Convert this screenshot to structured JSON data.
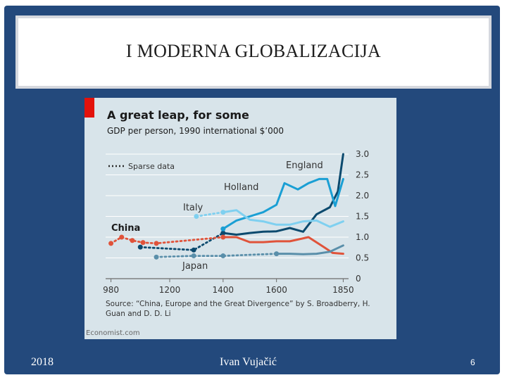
{
  "slide": {
    "title": "I   MODERNA GLOBALIZACIJA",
    "footer_year": "2018",
    "footer_author": "Ivan Vujačić",
    "page_number": "6"
  },
  "chart_data": {
    "type": "line",
    "title": "A great leap, for some",
    "subtitle": "GDP per person, 1990 international $’000",
    "legend_sparse": "Sparse data",
    "source": "Source: “China, Europe and the Great Divergence” by S. Broadberry, H. Guan and D. D. Li",
    "credit": "Economist.com",
    "xticks": [
      "980",
      "1200",
      "1400",
      "1600",
      "1850"
    ],
    "yticks": [
      "3.0",
      "2.5",
      "2.0",
      "1.5",
      "1.0",
      "0.5",
      "0"
    ],
    "xlim": [
      960,
      1870
    ],
    "ylim": [
      0,
      3.0
    ],
    "colors": {
      "England": "#0c4a6e",
      "Holland": "#1a9fd4",
      "Italy": "#7fd0f0",
      "China": "#e0533a",
      "Japan": "#5a8faa"
    },
    "series": [
      {
        "name": "England",
        "sparse": [
          [
            1090,
            0.76
          ],
          [
            1290,
            0.69
          ],
          [
            1400,
            1.1
          ]
        ],
        "values": [
          [
            1400,
            1.1
          ],
          [
            1450,
            1.06
          ],
          [
            1500,
            1.1
          ],
          [
            1550,
            1.13
          ],
          [
            1600,
            1.14
          ],
          [
            1650,
            1.22
          ],
          [
            1700,
            1.13
          ],
          [
            1750,
            1.55
          ],
          [
            1800,
            1.72
          ],
          [
            1830,
            2.1
          ],
          [
            1850,
            3.0
          ]
        ]
      },
      {
        "name": "Holland",
        "values": [
          [
            1400,
            1.2
          ],
          [
            1450,
            1.4
          ],
          [
            1500,
            1.5
          ],
          [
            1550,
            1.6
          ],
          [
            1600,
            1.78
          ],
          [
            1630,
            2.3
          ],
          [
            1680,
            2.15
          ],
          [
            1720,
            2.3
          ],
          [
            1760,
            2.4
          ],
          [
            1790,
            2.4
          ],
          [
            1820,
            1.75
          ],
          [
            1850,
            2.4
          ]
        ]
      },
      {
        "name": "Italy",
        "sparse": [
          [
            1300,
            1.5
          ],
          [
            1400,
            1.6
          ]
        ],
        "values": [
          [
            1400,
            1.6
          ],
          [
            1450,
            1.65
          ],
          [
            1500,
            1.42
          ],
          [
            1550,
            1.38
          ],
          [
            1600,
            1.3
          ],
          [
            1650,
            1.3
          ],
          [
            1700,
            1.38
          ],
          [
            1750,
            1.4
          ],
          [
            1800,
            1.25
          ],
          [
            1850,
            1.38
          ]
        ]
      },
      {
        "name": "China",
        "sparse": [
          [
            980,
            0.85
          ],
          [
            1020,
            1.0
          ],
          [
            1060,
            0.92
          ],
          [
            1100,
            0.87
          ],
          [
            1150,
            0.85
          ],
          [
            1400,
            1.0
          ]
        ],
        "values": [
          [
            1400,
            1.0
          ],
          [
            1450,
            1.0
          ],
          [
            1500,
            0.88
          ],
          [
            1550,
            0.88
          ],
          [
            1600,
            0.9
          ],
          [
            1650,
            0.9
          ],
          [
            1720,
            1.0
          ],
          [
            1780,
            0.75
          ],
          [
            1810,
            0.62
          ],
          [
            1850,
            0.6
          ]
        ]
      },
      {
        "name": "Japan",
        "sparse": [
          [
            1150,
            0.52
          ],
          [
            1290,
            0.55
          ],
          [
            1400,
            0.55
          ],
          [
            1600,
            0.6
          ]
        ],
        "values": [
          [
            1600,
            0.6
          ],
          [
            1650,
            0.6
          ],
          [
            1700,
            0.59
          ],
          [
            1750,
            0.6
          ],
          [
            1800,
            0.65
          ],
          [
            1850,
            0.8
          ]
        ]
      }
    ]
  }
}
